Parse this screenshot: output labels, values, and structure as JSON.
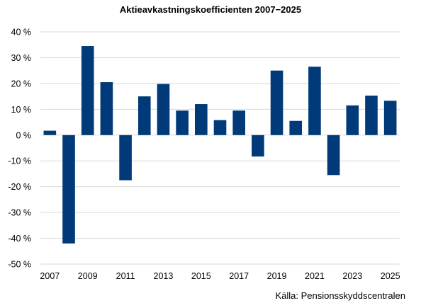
{
  "chart_data": {
    "type": "bar",
    "title": "Aktieavkastningskoefficienten 2007−2025",
    "xlabel": "",
    "ylabel": "",
    "categories": [
      "2007",
      "2008",
      "2009",
      "2010",
      "2011",
      "2012",
      "2013",
      "2014",
      "2015",
      "2016",
      "2017",
      "2018",
      "2019",
      "2020",
      "2021",
      "2022",
      "2023",
      "2024",
      "2025"
    ],
    "values": [
      1.7,
      -42,
      34.5,
      20.5,
      -17.5,
      15,
      19.8,
      9.5,
      12,
      5.8,
      9.5,
      -8.3,
      25,
      5.5,
      26.5,
      -15.5,
      11.5,
      15.3,
      13.3
    ],
    "x_tick_labels": [
      "2007",
      "2009",
      "2011",
      "2013",
      "2015",
      "2017",
      "2019",
      "2021",
      "2023",
      "2025"
    ],
    "y_ticks": [
      40,
      30,
      20,
      10,
      0,
      -10,
      -20,
      -30,
      -40,
      -50
    ],
    "y_tick_labels": [
      "40 %",
      "30 %",
      "20 %",
      "10 %",
      "0 %",
      "-10 %",
      "-20 %",
      "-30 %",
      "-40 %",
      "-50 %"
    ],
    "ylim": [
      -50,
      40
    ],
    "grid": true,
    "legend": "none",
    "bar_color": "#003a78",
    "grid_color": "#d9d9d9"
  },
  "source": "Källa: Pensionsskyddscentralen"
}
